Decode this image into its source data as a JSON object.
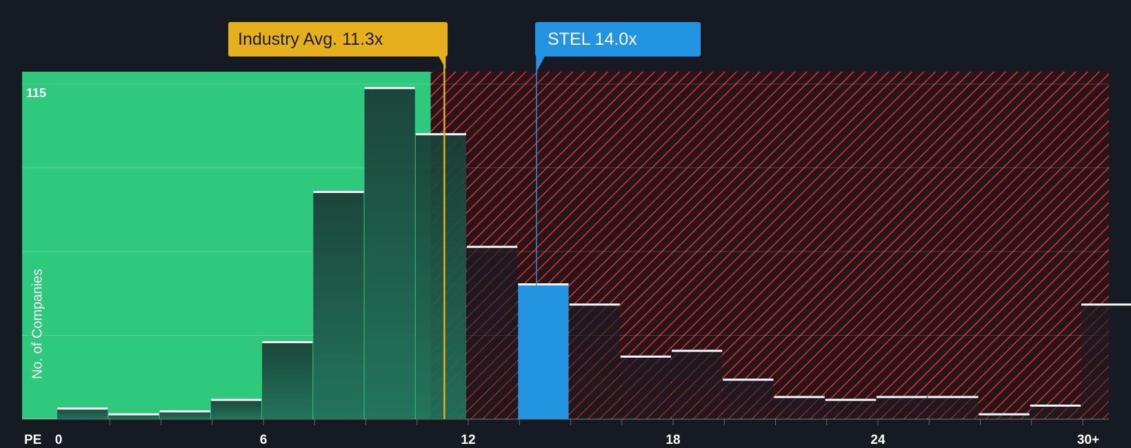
{
  "chart_data": {
    "type": "histogram",
    "xlabel": "PE",
    "ylabel": "No. of Companies",
    "y_max_label": "115",
    "ylim": [
      0,
      120
    ],
    "x_range": [
      0,
      31.5
    ],
    "bin_width": 1.5,
    "x_ticks": [
      {
        "value": 0,
        "label": "0"
      },
      {
        "value": 6,
        "label": "6"
      },
      {
        "value": 12,
        "label": "12"
      },
      {
        "value": 18,
        "label": "18"
      },
      {
        "value": 24,
        "label": "24"
      },
      {
        "value": 30,
        "label": "30+"
      }
    ],
    "gridlines": [
      29,
      58,
      87,
      116
    ],
    "bins": [
      {
        "start": 0,
        "count": 4
      },
      {
        "start": 1.5,
        "count": 2
      },
      {
        "start": 3,
        "count": 3
      },
      {
        "start": 4.5,
        "count": 7
      },
      {
        "start": 6,
        "count": 27
      },
      {
        "start": 7.5,
        "count": 79
      },
      {
        "start": 9,
        "count": 115
      },
      {
        "start": 10.5,
        "count": 99
      },
      {
        "start": 12,
        "count": 60
      },
      {
        "start": 13.5,
        "count": 47
      },
      {
        "start": 15,
        "count": 40
      },
      {
        "start": 16.5,
        "count": 22
      },
      {
        "start": 18,
        "count": 24
      },
      {
        "start": 19.5,
        "count": 14
      },
      {
        "start": 21,
        "count": 8
      },
      {
        "start": 22.5,
        "count": 7
      },
      {
        "start": 24,
        "count": 8
      },
      {
        "start": 25.5,
        "count": 8
      },
      {
        "start": 27,
        "count": 2
      },
      {
        "start": 28.5,
        "count": 5
      },
      {
        "start": 30,
        "count": 40
      }
    ],
    "highlighted_bin_start": 13.5,
    "industry_avg": {
      "value": 11.3,
      "label": "Industry Avg. 11.3x"
    },
    "company": {
      "ticker": "STEL",
      "value": 14.0,
      "label": "STEL 14.0x"
    },
    "undervalued_region_end": 10.9
  },
  "colors": {
    "background": "#151a23",
    "undervalued_fill": "#2ec97d",
    "overvalued_hatch": "#d23a3a",
    "bar_dark": "#1c4a3c",
    "highlight": "#2394e1",
    "industry": "#e6b01c"
  }
}
